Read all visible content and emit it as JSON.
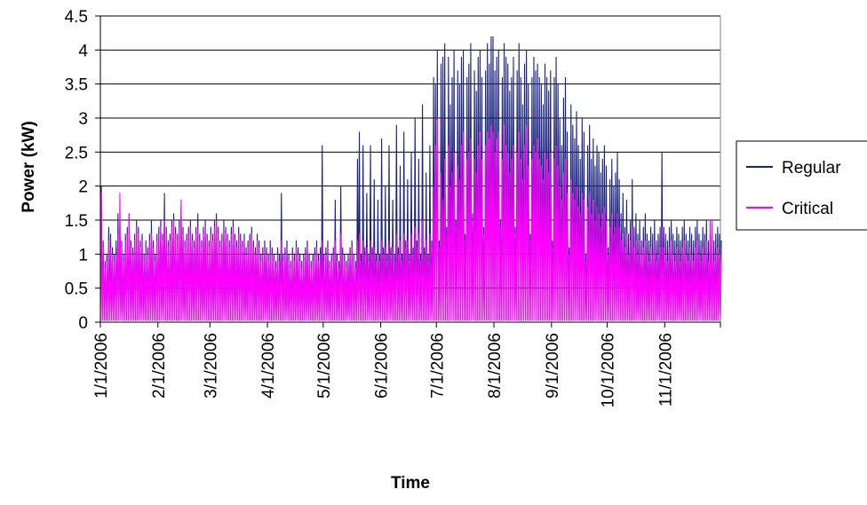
{
  "chart_data": {
    "type": "line",
    "title": "",
    "xlabel": "Time",
    "ylabel": "Power (kW)",
    "xlim": [
      "1/1/2006",
      "12/1/2006"
    ],
    "ylim": [
      0,
      4.5
    ],
    "x_ticks": [
      "1/1/2006",
      "2/1/2006",
      "3/1/2006",
      "4/1/2006",
      "5/1/2006",
      "6/1/2006",
      "7/1/2006",
      "8/1/2006",
      "9/1/2006",
      "10/1/2006",
      "11/1/2006"
    ],
    "y_ticks": [
      0,
      0.5,
      1,
      1.5,
      2,
      2.5,
      3,
      3.5,
      4,
      4.5
    ],
    "grid": "horizontal",
    "legend_position": "right",
    "series": [
      {
        "name": "Regular",
        "color": "#1a237e",
        "daily_peak_kW": [
          2.0,
          1.2,
          0.9,
          1.0,
          1.4,
          1.3,
          1.1,
          1.0,
          1.2,
          1.6,
          1.5,
          1.2,
          1.0,
          1.3,
          1.4,
          1.6,
          1.2,
          1.1,
          1.3,
          1.5,
          1.4,
          1.2,
          1.3,
          1.0,
          1.2,
          1.1,
          1.3,
          1.5,
          1.2,
          1.0,
          1.3,
          1.4,
          1.5,
          1.3,
          1.9,
          1.4,
          1.2,
          1.3,
          1.5,
          1.6,
          1.4,
          1.3,
          1.5,
          1.7,
          1.4,
          1.2,
          1.3,
          1.4,
          1.5,
          1.3,
          1.2,
          1.4,
          1.6,
          1.3,
          1.2,
          1.4,
          1.5,
          1.3,
          1.2,
          1.4,
          1.3,
          1.5,
          1.6,
          1.4,
          1.2,
          1.3,
          1.5,
          1.4,
          1.3,
          1.2,
          1.4,
          1.5,
          1.3,
          1.2,
          1.4,
          1.3,
          1.2,
          1.3,
          1.1,
          1.2,
          1.3,
          1.4,
          1.2,
          1.1,
          1.3,
          1.2,
          1.0,
          1.1,
          1.2,
          1.1,
          1.0,
          1.2,
          1.1,
          1.0,
          0.9,
          1.1,
          1.0,
          1.9,
          1.0,
          1.1,
          1.2,
          1.0,
          0.9,
          1.1,
          1.0,
          1.2,
          1.1,
          1.0,
          0.9,
          1.0,
          1.1,
          1.2,
          1.0,
          0.9,
          1.0,
          1.1,
          1.2,
          1.0,
          1.1,
          2.6,
          1.0,
          1.1,
          1.2,
          0.9,
          1.0,
          1.1,
          1.8,
          1.0,
          0.9,
          2.0,
          1.1,
          1.0,
          0.9,
          1.0,
          1.1,
          1.2,
          1.0,
          0.9,
          2.4,
          2.8,
          1.0,
          2.6,
          1.1,
          1.9,
          1.0,
          2.6,
          1.1,
          2.1,
          1.0,
          1.8,
          1.0,
          2.7,
          1.1,
          2.0,
          1.0,
          2.6,
          1.1,
          1.8,
          1.0,
          2.9,
          1.1,
          2.3,
          1.0,
          2.8,
          1.2,
          2.1,
          1.0,
          2.5,
          1.1,
          3.0,
          1.2,
          2.4,
          1.0,
          3.2,
          1.1,
          2.2,
          1.0,
          2.6,
          1.2,
          3.6,
          3.5,
          4.0,
          1.2,
          3.8,
          3.9,
          4.1,
          1.4,
          3.9,
          3.2,
          3.6,
          4.0,
          1.5,
          3.7,
          3.5,
          3.9,
          4.0,
          1.3,
          3.6,
          3.8,
          4.1,
          1.6,
          3.7,
          3.4,
          3.9,
          4.0,
          3.6,
          1.4,
          3.7,
          4.1,
          3.8,
          4.2,
          4.2,
          3.7,
          3.9,
          4.0,
          1.5,
          3.6,
          4.1,
          3.9,
          3.8,
          3.4,
          3.6,
          3.9,
          1.4,
          3.7,
          4.1,
          3.6,
          3.2,
          3.8,
          4.0,
          3.5,
          1.3,
          3.6,
          3.9,
          3.7,
          3.8,
          3.6,
          3.5,
          3.2,
          3.8,
          3.6,
          3.4,
          3.7,
          1.2,
          3.6,
          3.9,
          3.5,
          3.0,
          2.6,
          3.3,
          3.6,
          2.8,
          1.1,
          3.2,
          2.9,
          2.7,
          3.1,
          2.6,
          2.4,
          3.0,
          2.8,
          1.0,
          2.6,
          2.9,
          2.4,
          2.7,
          2.3,
          2.6,
          2.5,
          2.2,
          2.4,
          2.6,
          2.3,
          1.1,
          2.1,
          2.4,
          2.0,
          2.2,
          2.5,
          2.1,
          1.6,
          1.9,
          1.4,
          1.8,
          1.3,
          1.5,
          2.1,
          1.4,
          1.6,
          1.3,
          1.5,
          1.2,
          1.4,
          1.6,
          1.3,
          1.2,
          1.4,
          1.3,
          1.5,
          1.2,
          1.3,
          1.4,
          2.5,
          1.4,
          1.3,
          1.2,
          1.4,
          1.5,
          1.3,
          1.2,
          1.4,
          1.3,
          1.2,
          1.4,
          1.5,
          1.3,
          1.2,
          1.4,
          1.3,
          1.2,
          1.4,
          1.5,
          1.3,
          1.2,
          1.4,
          1.3,
          1.5,
          1.2,
          1.3,
          1.4,
          1.2,
          1.3,
          1.4,
          1.3,
          1.2,
          1.4,
          1.3,
          1.2,
          1.4,
          1.3,
          1.2,
          1.0,
          1.3,
          1.2,
          1.1,
          1.3,
          1.2,
          1.1,
          1.0,
          1.2,
          1.1,
          1.3,
          1.2,
          1.1,
          1.0,
          1.2,
          1.3,
          1.1,
          1.2,
          1.0,
          1.1,
          1.2,
          1.0,
          0.9
        ]
      },
      {
        "name": "Critical",
        "color": "#ff00ff",
        "daily_peak_kW": [
          1.9,
          1.1,
          0.8,
          0.9,
          1.2,
          1.1,
          1.0,
          0.9,
          1.0,
          1.3,
          1.9,
          1.1,
          0.9,
          1.2,
          1.3,
          1.6,
          1.1,
          1.0,
          1.2,
          1.4,
          1.3,
          1.1,
          1.2,
          0.9,
          1.1,
          1.0,
          1.2,
          1.3,
          1.1,
          0.9,
          1.2,
          1.3,
          1.4,
          1.2,
          1.5,
          1.3,
          1.1,
          1.2,
          1.4,
          1.5,
          1.3,
          1.2,
          1.4,
          1.8,
          1.3,
          1.1,
          1.2,
          1.3,
          1.4,
          1.2,
          1.1,
          1.3,
          1.4,
          1.2,
          1.1,
          1.3,
          1.4,
          1.2,
          1.1,
          1.3,
          1.2,
          1.4,
          1.5,
          1.3,
          1.1,
          1.2,
          1.4,
          1.3,
          1.2,
          1.1,
          1.3,
          1.4,
          1.2,
          1.1,
          1.3,
          1.2,
          1.1,
          1.2,
          1.0,
          1.1,
          1.2,
          1.3,
          1.1,
          1.0,
          1.2,
          1.1,
          0.9,
          1.0,
          1.1,
          1.0,
          0.9,
          1.1,
          1.0,
          0.9,
          0.8,
          1.0,
          0.9,
          1.2,
          0.9,
          1.0,
          1.1,
          0.9,
          0.8,
          1.0,
          0.9,
          1.1,
          1.0,
          0.9,
          0.8,
          0.9,
          1.0,
          1.1,
          0.9,
          0.8,
          0.9,
          1.0,
          1.1,
          0.9,
          1.0,
          1.2,
          0.9,
          1.0,
          1.1,
          0.8,
          0.9,
          1.0,
          1.2,
          0.9,
          0.8,
          1.3,
          1.0,
          0.9,
          0.8,
          0.9,
          1.0,
          1.1,
          0.9,
          0.8,
          1.2,
          1.3,
          0.9,
          1.2,
          1.0,
          1.1,
          0.9,
          1.2,
          1.0,
          1.1,
          0.9,
          1.0,
          0.9,
          1.2,
          1.0,
          1.1,
          0.9,
          1.2,
          1.0,
          1.1,
          0.9,
          1.3,
          1.0,
          1.2,
          0.9,
          1.3,
          1.1,
          1.2,
          0.9,
          1.3,
          1.0,
          1.4,
          1.1,
          1.3,
          0.9,
          1.5,
          1.0,
          1.2,
          0.9,
          1.3,
          1.1,
          2.0,
          2.6,
          3.0,
          1.1,
          2.2,
          1.8,
          2.4,
          1.3,
          2.6,
          2.0,
          2.2,
          2.5,
          1.4,
          2.3,
          2.1,
          2.6,
          2.8,
          1.2,
          2.4,
          2.5,
          2.7,
          1.5,
          2.4,
          2.2,
          2.6,
          2.8,
          2.4,
          1.3,
          2.6,
          2.8,
          2.7,
          2.9,
          2.8,
          2.5,
          2.7,
          2.8,
          1.4,
          2.4,
          2.9,
          2.6,
          2.5,
          2.2,
          2.4,
          2.6,
          1.3,
          2.5,
          2.8,
          2.4,
          2.1,
          2.6,
          2.9,
          2.3,
          1.2,
          2.4,
          2.6,
          2.5,
          2.7,
          2.4,
          2.3,
          2.1,
          2.5,
          2.4,
          2.2,
          2.5,
          1.1,
          2.4,
          2.6,
          2.3,
          2.0,
          1.8,
          2.2,
          2.4,
          1.9,
          1.0,
          2.1,
          1.9,
          1.8,
          2.0,
          1.7,
          1.6,
          1.9,
          1.8,
          0.9,
          1.7,
          1.9,
          1.6,
          1.8,
          1.5,
          1.7,
          1.6,
          1.4,
          1.6,
          1.7,
          1.5,
          1.0,
          1.4,
          1.6,
          1.3,
          1.4,
          1.6,
          1.4,
          1.2,
          1.3,
          1.1,
          1.3,
          1.0,
          1.2,
          1.4,
          1.1,
          1.2,
          1.0,
          1.2,
          1.0,
          1.1,
          1.2,
          1.0,
          0.9,
          1.1,
          1.0,
          1.2,
          0.9,
          1.0,
          1.1,
          1.4,
          1.1,
          1.0,
          0.9,
          1.1,
          1.2,
          1.0,
          0.9,
          1.1,
          1.0,
          0.9,
          1.1,
          1.2,
          1.0,
          0.9,
          1.1,
          1.0,
          0.9,
          1.1,
          1.2,
          1.0,
          0.9,
          1.1,
          1.0,
          1.2,
          0.9,
          1.5,
          1.5,
          0.9,
          1.0,
          1.1,
          1.0,
          0.9,
          1.1,
          1.0,
          0.9,
          1.1,
          1.0,
          0.9,
          0.8,
          1.0,
          0.9,
          0.8,
          1.0,
          0.9,
          0.8,
          0.7,
          0.9,
          0.8,
          1.0,
          0.9,
          1.8,
          0.7,
          0.9,
          1.0,
          0.8,
          0.9,
          0.7,
          0.8,
          0.9,
          0.7,
          0.6
        ]
      }
    ]
  }
}
